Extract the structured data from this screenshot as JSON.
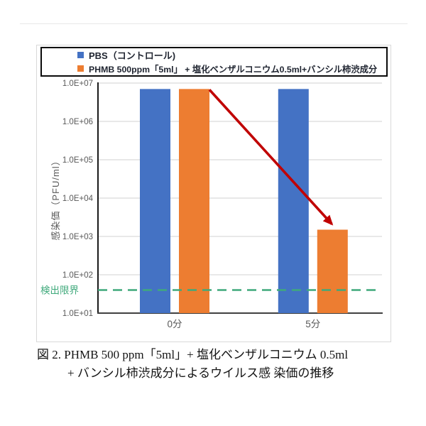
{
  "figure": {
    "caption_line1": "図 2.  PHMB 500 ppm「5ml」+ 塩化ベンザルコニウム 0.5ml",
    "caption_line2": "+ バンシル柿渋成分によるウイルス感 染価の推移"
  },
  "chart_data": {
    "type": "bar",
    "categories": [
      "0分",
      "5分"
    ],
    "series": [
      {
        "name": "PBS（コントロール)",
        "color": "#4472C4",
        "values": [
          7000000,
          7000000
        ]
      },
      {
        "name": "PHMB 500ppm「5ml」 + 塩化ベンザルコニウム0.5ml+バンシル柿渋成分",
        "color": "#ED7D31",
        "values": [
          7000000,
          1500
        ]
      }
    ],
    "ylabel": "感染価（PFU/ml）",
    "xlabel": "",
    "yscale": "log",
    "ylim": [
      10,
      10000000
    ],
    "yticks": [
      "1.0E+07",
      "1.0E+06",
      "1.0E+05",
      "1.0E+04",
      "1.0E+03",
      "1.0E+02",
      "1.0E+01"
    ],
    "grid": true,
    "legend_position": "top",
    "detection_limit": {
      "label": "検出限界",
      "value": 40,
      "color": "#3FA97B",
      "style": "dashed"
    },
    "annotation_arrow": {
      "description": "decline from 0分 orange bar to 5分 orange bar",
      "color": "#C00000"
    },
    "colors": {
      "grid": "#D9D9D9",
      "axis": "#404040",
      "tick_text": "#595959",
      "category_text": "#595959",
      "axis_title": "#595959",
      "legend_text": "#1F2430"
    }
  }
}
